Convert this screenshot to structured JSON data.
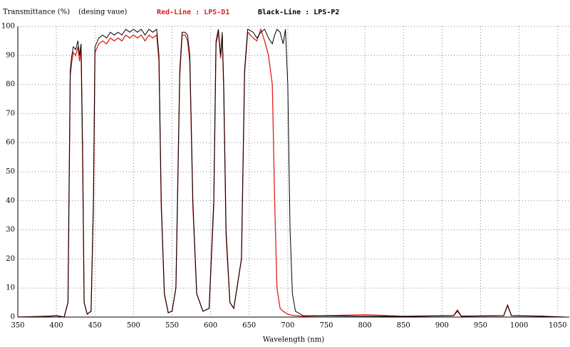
{
  "chart_data": {
    "type": "line",
    "ylabel": "Transmittance (%)",
    "note": "(desing vaue)",
    "xlabel": "Wavelength (nm)",
    "x": [
      350,
      390,
      400,
      410,
      415,
      418,
      420,
      422,
      425,
      428,
      430,
      432,
      434,
      436,
      440,
      445,
      448,
      450,
      455,
      460,
      465,
      470,
      475,
      480,
      485,
      490,
      495,
      500,
      505,
      510,
      515,
      520,
      525,
      530,
      533,
      536,
      540,
      545,
      550,
      555,
      560,
      563,
      567,
      570,
      573,
      577,
      582,
      590,
      598,
      604,
      607,
      610,
      613,
      615,
      617,
      620,
      625,
      630,
      640,
      644,
      648,
      655,
      660,
      665,
      670,
      675,
      680,
      683,
      686,
      690,
      694,
      697,
      700,
      703,
      706,
      710,
      720,
      800,
      850,
      915,
      920,
      925,
      980,
      985,
      990,
      1030,
      1060
    ],
    "series": [
      {
        "name": "Black-Line : LPS-P2",
        "color": "#000000",
        "values": [
          0,
          0.3,
          0.5,
          0,
          5,
          85,
          90,
          93,
          92,
          95,
          90,
          94,
          60,
          5,
          1,
          2,
          40,
          93,
          96,
          97,
          96,
          98,
          97,
          98,
          97,
          99,
          98,
          99,
          98,
          99,
          97,
          99,
          98,
          99,
          90,
          40,
          8,
          1.5,
          2,
          10,
          85,
          98,
          98,
          97,
          90,
          40,
          8,
          2,
          3,
          40,
          95,
          99,
          90,
          98,
          80,
          30,
          5,
          3,
          20,
          85,
          99,
          98,
          96,
          98,
          99,
          96,
          94,
          97,
          99,
          98,
          94,
          99,
          80,
          30,
          8,
          2,
          0.5,
          0.3,
          0.2,
          0.5,
          2,
          0.3,
          0.5,
          4,
          0.5,
          0.3,
          0
        ]
      },
      {
        "name": "Red-Line : LPS-D1",
        "color": "#e0201a",
        "values": [
          0,
          0.3,
          0.5,
          0,
          5,
          83,
          88,
          91,
          90,
          93,
          88,
          92,
          55,
          5,
          1,
          2,
          38,
          91,
          94,
          95,
          94,
          96,
          95,
          96,
          95,
          97,
          96,
          97,
          96,
          97,
          95,
          97,
          96,
          97,
          88,
          38,
          8,
          1.5,
          2,
          10,
          83,
          97,
          97,
          95,
          88,
          38,
          8,
          2,
          3,
          38,
          94,
          98,
          89,
          97,
          78,
          28,
          5,
          3,
          20,
          84,
          98,
          96,
          95,
          99,
          95,
          90,
          80,
          40,
          10,
          3,
          2,
          1.5,
          1,
          0.8,
          0.6,
          0.5,
          0.3,
          0.8,
          0.3,
          0.5,
          2.5,
          0.3,
          0.5,
          4.2,
          0.5,
          0.3,
          0
        ]
      }
    ],
    "xlim": [
      350,
      1065
    ],
    "ylim": [
      0,
      100
    ],
    "xticks": [
      350,
      400,
      450,
      500,
      550,
      600,
      650,
      700,
      750,
      800,
      850,
      900,
      950,
      1000,
      1050
    ],
    "yticks": [
      0,
      10,
      20,
      30,
      40,
      50,
      60,
      70,
      80,
      90,
      100
    ],
    "grid": true
  }
}
